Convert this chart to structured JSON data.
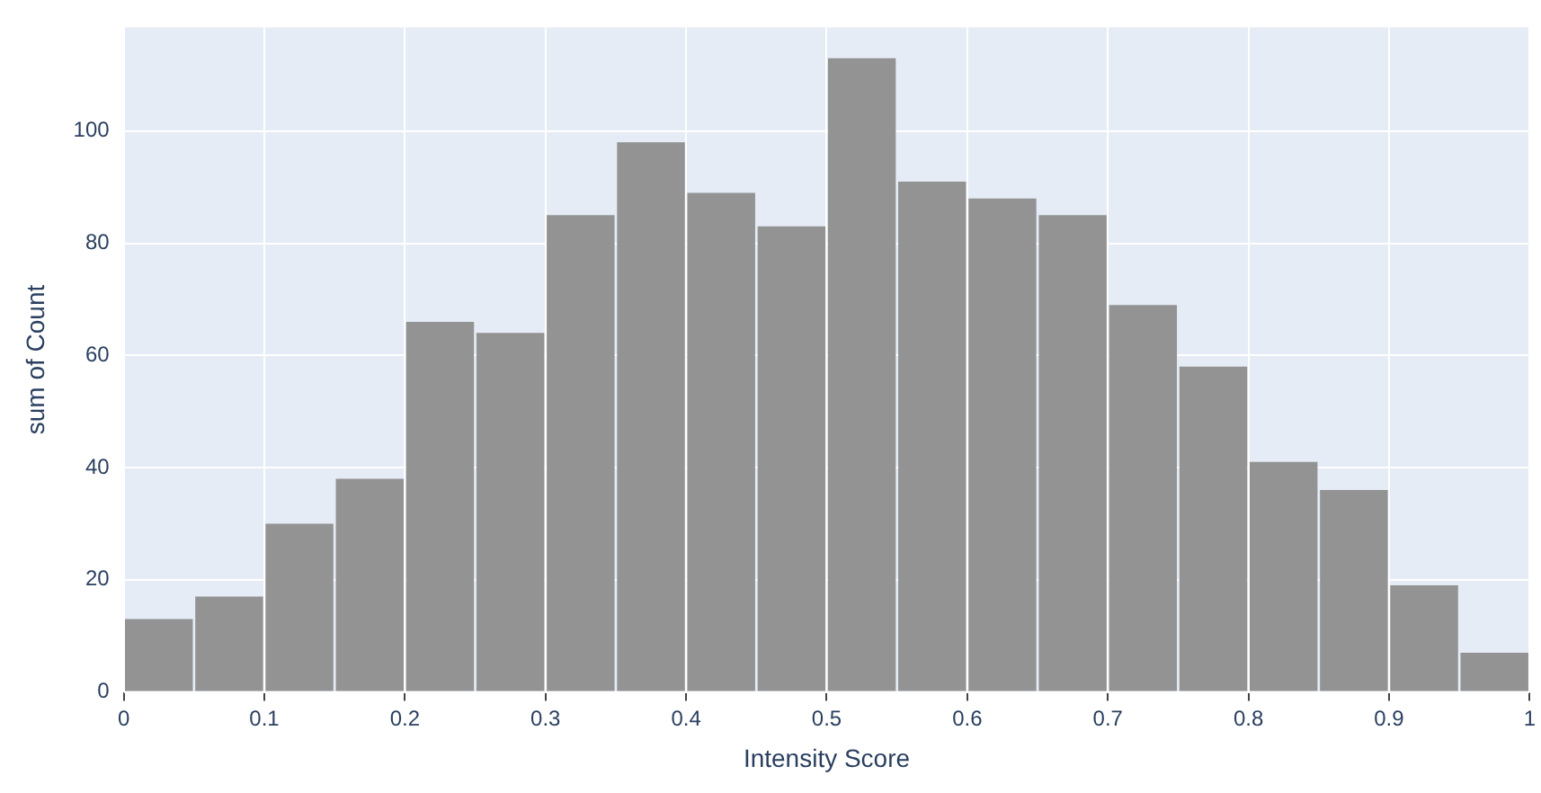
{
  "chart_data": {
    "type": "histogram",
    "xlabel": "Intensity Score",
    "ylabel": "sum of Count",
    "bins": [
      0,
      0.05,
      0.1,
      0.15,
      0.2,
      0.25,
      0.3,
      0.35,
      0.4,
      0.45,
      0.5,
      0.55,
      0.6,
      0.65,
      0.7,
      0.75,
      0.8,
      0.85,
      0.9,
      0.95,
      1
    ],
    "values": [
      13,
      17,
      30,
      38,
      66,
      64,
      85,
      98,
      89,
      83,
      113,
      91,
      88,
      85,
      69,
      58,
      41,
      36,
      19,
      7
    ],
    "color": "#939393",
    "xlim": [
      0,
      1
    ],
    "xticks": [
      0,
      0.1,
      0.2,
      0.3,
      0.4,
      0.5,
      0.6,
      0.7,
      0.8,
      0.9,
      1
    ],
    "ylim": [
      0,
      118.5
    ],
    "yticks": [
      0,
      20,
      40,
      60,
      80,
      100
    ],
    "grid": true,
    "legend": false
  }
}
